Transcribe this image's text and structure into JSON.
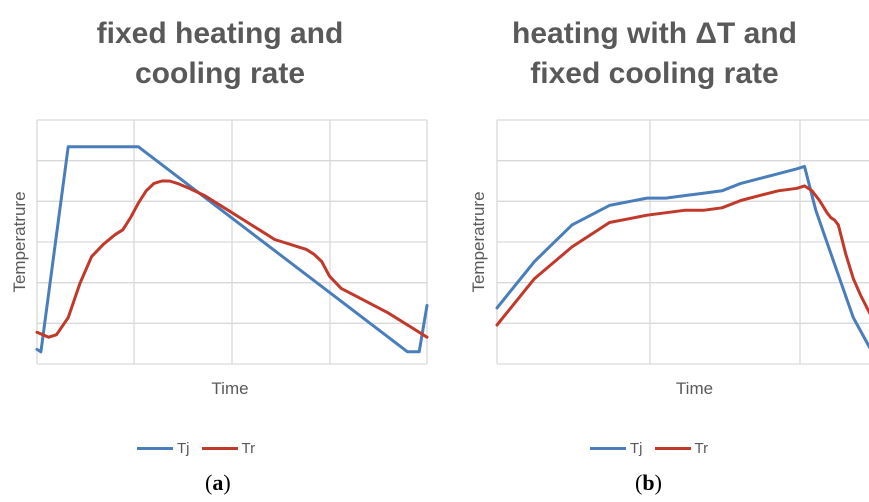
{
  "chart_data": [
    {
      "type": "line",
      "title_lines": [
        "fixed heating and",
        "cooling rate"
      ],
      "xlabel": "Time",
      "ylabel": "Temperatrure",
      "xlim": [
        0,
        100
      ],
      "ylim": [
        0,
        100
      ],
      "grid": true,
      "legend_position": "bottom",
      "caption_prefix": "(",
      "caption_letter": "a",
      "caption_suffix": ")",
      "series": [
        {
          "name": "Tj",
          "color": "#4a7ebb",
          "x": [
            0,
            1,
            8,
            26,
            95,
            98,
            100
          ],
          "y": [
            6,
            5,
            89,
            89,
            5,
            5,
            24
          ]
        },
        {
          "name": "Tr",
          "color": "#c0392b",
          "x": [
            0,
            3,
            5,
            8,
            11,
            14,
            17,
            20,
            22,
            24,
            26,
            28,
            30,
            32,
            34,
            36,
            39,
            43,
            48,
            53,
            57,
            59,
            61,
            63,
            65,
            67,
            69,
            71,
            73,
            75,
            78,
            84,
            90,
            96,
            100
          ],
          "y": [
            13,
            11,
            12,
            19,
            33,
            44,
            49,
            53,
            55,
            60,
            66,
            71,
            74,
            75,
            75,
            74,
            72,
            69,
            64,
            59,
            55,
            53,
            51,
            50,
            49,
            48,
            47,
            45,
            42,
            36,
            31,
            26,
            21,
            15,
            11
          ]
        }
      ]
    },
    {
      "type": "line",
      "title_lines": [
        "heating with ΔT and",
        "fixed cooling rate"
      ],
      "xlabel": "Time",
      "ylabel": "Temperatrure",
      "xlim": [
        0,
        100
      ],
      "ylim": [
        0,
        100
      ],
      "grid": true,
      "legend_position": "bottom",
      "caption_prefix": "(",
      "caption_letter": "b",
      "caption_suffix": ")",
      "series": [
        {
          "name": "Tj",
          "color": "#4a7ebb",
          "x": [
            0,
            10,
            20,
            30,
            40,
            45,
            50,
            55,
            60,
            65,
            70,
            75,
            80,
            82,
            85,
            90,
            95,
            100
          ],
          "y": [
            23,
            42,
            57,
            65,
            68,
            68,
            69,
            70,
            71,
            74,
            76,
            78,
            80,
            81,
            63,
            41,
            19,
            5
          ]
        },
        {
          "name": "Tr",
          "color": "#c0392b",
          "x": [
            0,
            10,
            20,
            30,
            40,
            50,
            55,
            60,
            65,
            70,
            75,
            80,
            82,
            84,
            86,
            88,
            89,
            90,
            91,
            93,
            95,
            97,
            100
          ],
          "y": [
            16,
            35,
            48,
            58,
            61,
            63,
            63,
            64,
            67,
            69,
            71,
            72,
            73,
            71,
            67,
            62,
            60,
            59,
            57,
            45,
            35,
            28,
            19
          ]
        }
      ]
    }
  ]
}
